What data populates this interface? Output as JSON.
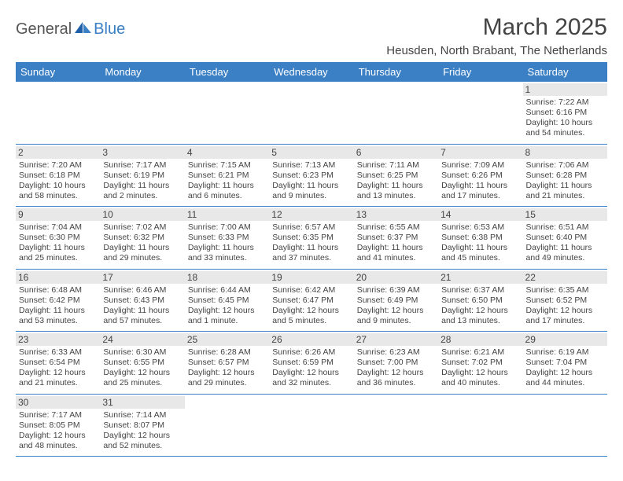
{
  "logo": {
    "part1": "General",
    "part2": "Blue"
  },
  "title": "March 2025",
  "location": "Heusden, North Brabant, The Netherlands",
  "colors": {
    "header_bg": "#3b7fc4",
    "header_text": "#ffffff",
    "daynum_bg": "#e8e8e8",
    "border": "#3b7fc4",
    "logo_gray": "#555555",
    "logo_blue": "#3b7fc4"
  },
  "dayHeaders": [
    "Sunday",
    "Monday",
    "Tuesday",
    "Wednesday",
    "Thursday",
    "Friday",
    "Saturday"
  ],
  "weeks": [
    [
      null,
      null,
      null,
      null,
      null,
      null,
      {
        "n": "1",
        "sr": "Sunrise: 7:22 AM",
        "ss": "Sunset: 6:16 PM",
        "dl": "Daylight: 10 hours and 54 minutes."
      }
    ],
    [
      {
        "n": "2",
        "sr": "Sunrise: 7:20 AM",
        "ss": "Sunset: 6:18 PM",
        "dl": "Daylight: 10 hours and 58 minutes."
      },
      {
        "n": "3",
        "sr": "Sunrise: 7:17 AM",
        "ss": "Sunset: 6:19 PM",
        "dl": "Daylight: 11 hours and 2 minutes."
      },
      {
        "n": "4",
        "sr": "Sunrise: 7:15 AM",
        "ss": "Sunset: 6:21 PM",
        "dl": "Daylight: 11 hours and 6 minutes."
      },
      {
        "n": "5",
        "sr": "Sunrise: 7:13 AM",
        "ss": "Sunset: 6:23 PM",
        "dl": "Daylight: 11 hours and 9 minutes."
      },
      {
        "n": "6",
        "sr": "Sunrise: 7:11 AM",
        "ss": "Sunset: 6:25 PM",
        "dl": "Daylight: 11 hours and 13 minutes."
      },
      {
        "n": "7",
        "sr": "Sunrise: 7:09 AM",
        "ss": "Sunset: 6:26 PM",
        "dl": "Daylight: 11 hours and 17 minutes."
      },
      {
        "n": "8",
        "sr": "Sunrise: 7:06 AM",
        "ss": "Sunset: 6:28 PM",
        "dl": "Daylight: 11 hours and 21 minutes."
      }
    ],
    [
      {
        "n": "9",
        "sr": "Sunrise: 7:04 AM",
        "ss": "Sunset: 6:30 PM",
        "dl": "Daylight: 11 hours and 25 minutes."
      },
      {
        "n": "10",
        "sr": "Sunrise: 7:02 AM",
        "ss": "Sunset: 6:32 PM",
        "dl": "Daylight: 11 hours and 29 minutes."
      },
      {
        "n": "11",
        "sr": "Sunrise: 7:00 AM",
        "ss": "Sunset: 6:33 PM",
        "dl": "Daylight: 11 hours and 33 minutes."
      },
      {
        "n": "12",
        "sr": "Sunrise: 6:57 AM",
        "ss": "Sunset: 6:35 PM",
        "dl": "Daylight: 11 hours and 37 minutes."
      },
      {
        "n": "13",
        "sr": "Sunrise: 6:55 AM",
        "ss": "Sunset: 6:37 PM",
        "dl": "Daylight: 11 hours and 41 minutes."
      },
      {
        "n": "14",
        "sr": "Sunrise: 6:53 AM",
        "ss": "Sunset: 6:38 PM",
        "dl": "Daylight: 11 hours and 45 minutes."
      },
      {
        "n": "15",
        "sr": "Sunrise: 6:51 AM",
        "ss": "Sunset: 6:40 PM",
        "dl": "Daylight: 11 hours and 49 minutes."
      }
    ],
    [
      {
        "n": "16",
        "sr": "Sunrise: 6:48 AM",
        "ss": "Sunset: 6:42 PM",
        "dl": "Daylight: 11 hours and 53 minutes."
      },
      {
        "n": "17",
        "sr": "Sunrise: 6:46 AM",
        "ss": "Sunset: 6:43 PM",
        "dl": "Daylight: 11 hours and 57 minutes."
      },
      {
        "n": "18",
        "sr": "Sunrise: 6:44 AM",
        "ss": "Sunset: 6:45 PM",
        "dl": "Daylight: 12 hours and 1 minute."
      },
      {
        "n": "19",
        "sr": "Sunrise: 6:42 AM",
        "ss": "Sunset: 6:47 PM",
        "dl": "Daylight: 12 hours and 5 minutes."
      },
      {
        "n": "20",
        "sr": "Sunrise: 6:39 AM",
        "ss": "Sunset: 6:49 PM",
        "dl": "Daylight: 12 hours and 9 minutes."
      },
      {
        "n": "21",
        "sr": "Sunrise: 6:37 AM",
        "ss": "Sunset: 6:50 PM",
        "dl": "Daylight: 12 hours and 13 minutes."
      },
      {
        "n": "22",
        "sr": "Sunrise: 6:35 AM",
        "ss": "Sunset: 6:52 PM",
        "dl": "Daylight: 12 hours and 17 minutes."
      }
    ],
    [
      {
        "n": "23",
        "sr": "Sunrise: 6:33 AM",
        "ss": "Sunset: 6:54 PM",
        "dl": "Daylight: 12 hours and 21 minutes."
      },
      {
        "n": "24",
        "sr": "Sunrise: 6:30 AM",
        "ss": "Sunset: 6:55 PM",
        "dl": "Daylight: 12 hours and 25 minutes."
      },
      {
        "n": "25",
        "sr": "Sunrise: 6:28 AM",
        "ss": "Sunset: 6:57 PM",
        "dl": "Daylight: 12 hours and 29 minutes."
      },
      {
        "n": "26",
        "sr": "Sunrise: 6:26 AM",
        "ss": "Sunset: 6:59 PM",
        "dl": "Daylight: 12 hours and 32 minutes."
      },
      {
        "n": "27",
        "sr": "Sunrise: 6:23 AM",
        "ss": "Sunset: 7:00 PM",
        "dl": "Daylight: 12 hours and 36 minutes."
      },
      {
        "n": "28",
        "sr": "Sunrise: 6:21 AM",
        "ss": "Sunset: 7:02 PM",
        "dl": "Daylight: 12 hours and 40 minutes."
      },
      {
        "n": "29",
        "sr": "Sunrise: 6:19 AM",
        "ss": "Sunset: 7:04 PM",
        "dl": "Daylight: 12 hours and 44 minutes."
      }
    ],
    [
      {
        "n": "30",
        "sr": "Sunrise: 7:17 AM",
        "ss": "Sunset: 8:05 PM",
        "dl": "Daylight: 12 hours and 48 minutes."
      },
      {
        "n": "31",
        "sr": "Sunrise: 7:14 AM",
        "ss": "Sunset: 8:07 PM",
        "dl": "Daylight: 12 hours and 52 minutes."
      },
      null,
      null,
      null,
      null,
      null
    ]
  ]
}
